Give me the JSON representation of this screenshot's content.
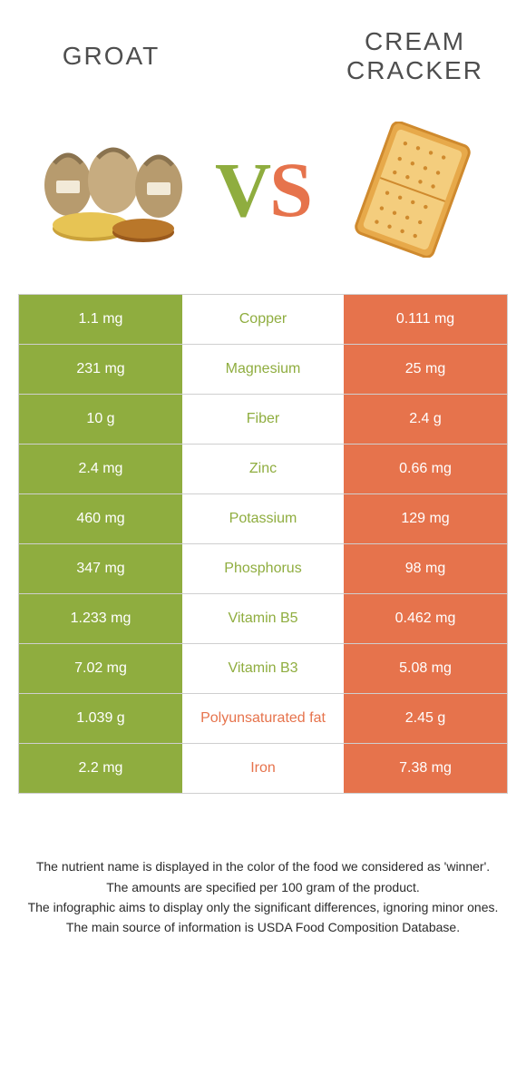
{
  "colors": {
    "left": "#8fad3f",
    "right": "#e6734c",
    "border": "#cfcfcf",
    "text": "#333333",
    "bg": "#ffffff"
  },
  "header": {
    "left_title": "Groat",
    "right_title": "Cream Cracker",
    "vs_v": "V",
    "vs_s": "S"
  },
  "rows": [
    {
      "name": "Copper",
      "left": "1.1 mg",
      "right": "0.111 mg",
      "winner": "left"
    },
    {
      "name": "Magnesium",
      "left": "231 mg",
      "right": "25 mg",
      "winner": "left"
    },
    {
      "name": "Fiber",
      "left": "10 g",
      "right": "2.4 g",
      "winner": "left"
    },
    {
      "name": "Zinc",
      "left": "2.4 mg",
      "right": "0.66 mg",
      "winner": "left"
    },
    {
      "name": "Potassium",
      "left": "460 mg",
      "right": "129 mg",
      "winner": "left"
    },
    {
      "name": "Phosphorus",
      "left": "347 mg",
      "right": "98 mg",
      "winner": "left"
    },
    {
      "name": "Vitamin B5",
      "left": "1.233 mg",
      "right": "0.462 mg",
      "winner": "left"
    },
    {
      "name": "Vitamin B3",
      "left": "7.02 mg",
      "right": "5.08 mg",
      "winner": "left"
    },
    {
      "name": "Polyunsaturated fat",
      "left": "1.039 g",
      "right": "2.45 g",
      "winner": "right"
    },
    {
      "name": "Iron",
      "left": "2.2 mg",
      "right": "7.38 mg",
      "winner": "right"
    }
  ],
  "notes": {
    "l1": "The nutrient name is displayed in the color of the food we considered as 'winner'.",
    "l2": "The amounts are specified per 100 gram of the product.",
    "l3": "The infographic aims to display only the significant differences, ignoring minor ones.",
    "l4": "The main source of information is USDA Food Composition Database."
  }
}
